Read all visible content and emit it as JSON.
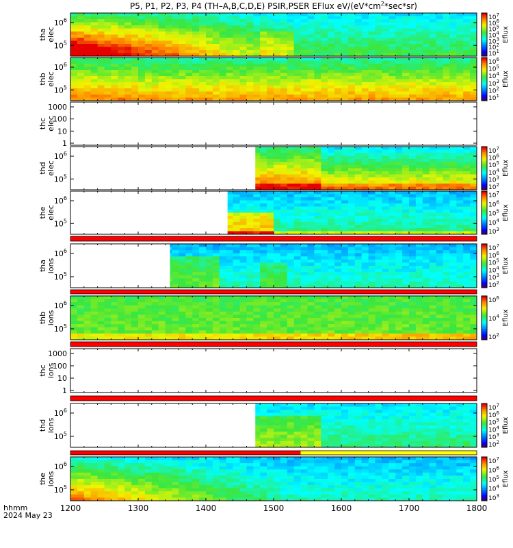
{
  "title": "P5, P1, P2, P3, P4 (TH–A,B,C,D,E) PSIR,PSER EFlux eV/(eV*cm",
  "title_sup": "2",
  "title_tail": "*sec*sr)",
  "date_label": "2024 May 23",
  "time_label": "hhmm",
  "colors": {
    "red_bar": "#ff0000",
    "yellow_bar": "#ffff00",
    "background": "#ffffff"
  },
  "chart_data": {
    "type": "heatmap",
    "x_axis": {
      "ticks": [
        "1200",
        "1300",
        "1400",
        "1500",
        "1600",
        "1700",
        "1800"
      ],
      "range": [
        1200,
        1800
      ],
      "units": "hhmm"
    },
    "panels": [
      {
        "id": "tha_elec",
        "label_line1": "tha",
        "label_line2": "elec",
        "data_start": 1200,
        "y_ticks": [
          "10^6",
          "10^5"
        ],
        "cbar_label": "Eflux",
        "cbar_ticks": [
          "10^7",
          "10^6",
          "10^5",
          "10^4",
          "10^3",
          "10^2",
          "10^1"
        ],
        "profile": "elec_a"
      },
      {
        "id": "thb_elec",
        "label_line1": "thb",
        "label_line2": "elec",
        "data_start": 1200,
        "y_ticks": [
          "10^6",
          "10^5"
        ],
        "cbar_label": "Eflux",
        "cbar_ticks": [
          "10^6",
          "10^5",
          "10^4",
          "10^3",
          "10^2",
          "10^1"
        ],
        "profile": "elec_b"
      },
      {
        "id": "thc_elec",
        "label_line1": "thc",
        "label_line2": "elec",
        "data_start": null,
        "y_ticks": [
          "1000",
          "100",
          "10",
          "1"
        ],
        "cbar_label": "",
        "cbar_ticks": [],
        "profile": "empty"
      },
      {
        "id": "thd_elec",
        "label_line1": "thd",
        "label_line2": "elec",
        "data_start": 1473,
        "y_ticks": [
          "10^6",
          "10^5"
        ],
        "cbar_label": "Eflux",
        "cbar_ticks": [
          "10^7",
          "10^6",
          "10^5",
          "10^4",
          "10^3",
          "10^2"
        ],
        "profile": "elec_d"
      },
      {
        "id": "the_elec",
        "label_line1": "the",
        "label_line2": "elec",
        "data_start": 1432,
        "y_ticks": [
          "10^6",
          "10^5"
        ],
        "cbar_label": "Eflux",
        "cbar_ticks": [
          "10^7",
          "10^6",
          "10^5",
          "10^4",
          "10^3"
        ],
        "profile": "elec_e"
      },
      {
        "id": "tha_ions",
        "label_line1": "tha",
        "label_line2": "ions",
        "data_start": 1347,
        "y_ticks": [
          "10^6",
          "10^5"
        ],
        "cbar_label": "Eflux",
        "cbar_ticks": [
          "10^7",
          "10^6",
          "10^5",
          "10^4",
          "10^3",
          "10^2"
        ],
        "profile": "ions_a"
      },
      {
        "id": "thb_ions",
        "label_line1": "thb",
        "label_line2": "ions",
        "data_start": 1200,
        "y_ticks": [
          "10^6",
          "10^5"
        ],
        "cbar_label": "Eflux",
        "cbar_ticks": [
          "10^6",
          "10^4",
          "10^2"
        ],
        "profile": "ions_b"
      },
      {
        "id": "thc_ions",
        "label_line1": "thc",
        "label_line2": "ions",
        "data_start": null,
        "y_ticks": [
          "1000",
          "100",
          "10",
          "1"
        ],
        "cbar_label": "",
        "cbar_ticks": [],
        "profile": "empty"
      },
      {
        "id": "thd_ions",
        "label_line1": "thd",
        "label_line2": "ions",
        "data_start": 1473,
        "y_ticks": [
          "10^6",
          "10^5"
        ],
        "cbar_label": "Eflux",
        "cbar_ticks": [
          "10^7",
          "10^6",
          "10^5",
          "10^4",
          "10^3",
          "10^2"
        ],
        "profile": "ions_d"
      },
      {
        "id": "the_ions",
        "label_line1": "the",
        "label_line2": "ions",
        "data_start": 1200,
        "y_ticks": [
          "10^6",
          "10^5"
        ],
        "cbar_label": "Eflux",
        "cbar_ticks": [
          "10^7",
          "10^6",
          "10^5",
          "10^4",
          "10^3"
        ],
        "profile": "ions_e"
      }
    ],
    "status_bars": [
      {
        "after_panel": "the_elec",
        "segments": [
          {
            "from": 1200,
            "to": 1800,
            "color": "red"
          }
        ]
      },
      {
        "after_panel": "tha_ions",
        "segments": [
          {
            "from": 1200,
            "to": 1800,
            "color": "red"
          }
        ]
      },
      {
        "after_panel": "thb_ions",
        "segments": [
          {
            "from": 1200,
            "to": 1800,
            "color": "red"
          }
        ]
      },
      {
        "after_panel": "thc_ions",
        "segments": [
          {
            "from": 1200,
            "to": 1800,
            "color": "red"
          }
        ]
      },
      {
        "after_panel": "thd_ions",
        "segments": [
          {
            "from": 1200,
            "to": 1540,
            "color": "red"
          },
          {
            "from": 1540,
            "to": 1800,
            "color": "yellow"
          }
        ]
      }
    ]
  }
}
